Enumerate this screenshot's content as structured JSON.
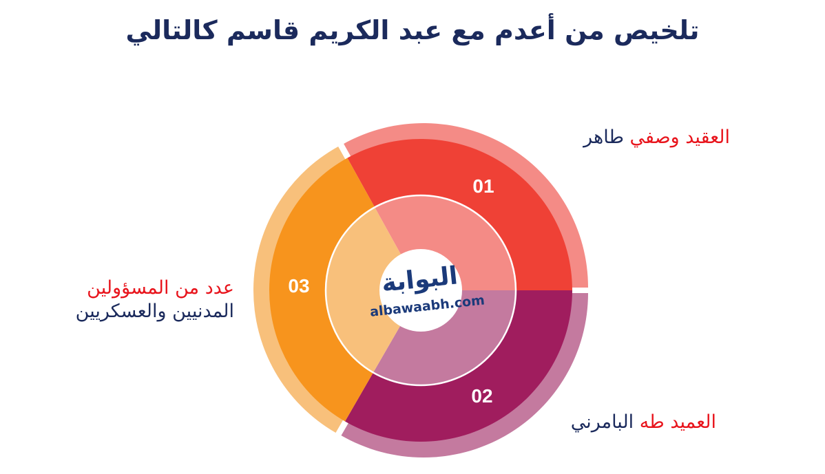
{
  "title": "تلخيص من أعدم مع عبد الكريم قاسم كالتالي",
  "logo": {
    "arabic": "البوابة",
    "english": "albawaabh.com"
  },
  "segments": [
    {
      "number": "01",
      "label_red": "العقيد وصفي",
      "label_navy": "طاهر",
      "color": "#ef4136",
      "inner_color": "#f48b86",
      "outer_color": "#f48b86"
    },
    {
      "number": "02",
      "label_red": "العميد طه",
      "label_navy": "البامرني",
      "color": "#a01d5e",
      "inner_color": "#c47a9f",
      "outer_color": "#c47a9f"
    },
    {
      "number": "03",
      "label_red": "عدد من المسؤولين",
      "label_navy": "المدنيين والعسكريين",
      "color": "#f7941d",
      "inner_color": "#f8c07b",
      "outer_color": "#f8c07b"
    }
  ]
}
